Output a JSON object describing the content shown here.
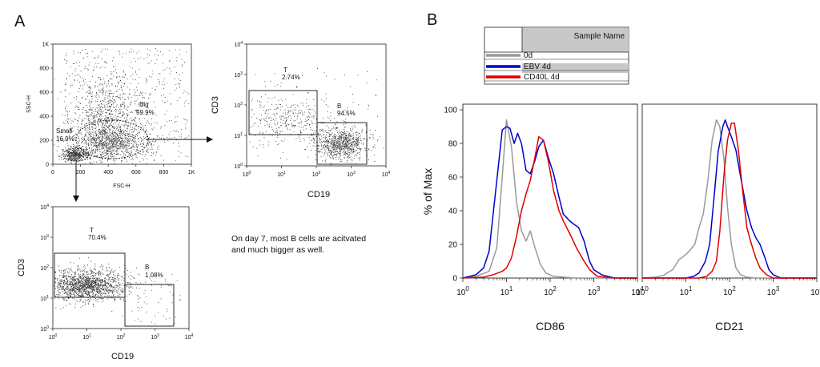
{
  "panels": {
    "a": "A",
    "b": "B"
  },
  "note": {
    "line1": "On day 7, most B cells are acitvated",
    "line2": "and  much bigger as well."
  },
  "chart_data": [
    {
      "id": "scatter-fsc-ssc",
      "type": "scatter",
      "xlabel": "FSC-H",
      "ylabel": "SSC-H",
      "x_ticks": [
        "0",
        "200",
        "400",
        "600",
        "800",
        "1K"
      ],
      "y_ticks": [
        "0",
        "200",
        "400",
        "600",
        "800",
        "1K"
      ],
      "xlim": [
        0,
        1000
      ],
      "ylim": [
        0,
        1000
      ],
      "gates": [
        {
          "name": "Small",
          "percent": "16.9%"
        },
        {
          "name": "Big",
          "percent": "59.9%"
        }
      ]
    },
    {
      "id": "scatter-cd19-cd3-top",
      "type": "scatter",
      "scale": "log",
      "xlabel": "CD19",
      "ylabel": "CD3",
      "xlim": [
        1,
        10000
      ],
      "ylim": [
        1,
        10000
      ],
      "gates": [
        {
          "name": "T",
          "percent": "2.74%"
        },
        {
          "name": "B",
          "percent": "94.5%"
        }
      ]
    },
    {
      "id": "scatter-cd19-cd3-bottom",
      "type": "scatter",
      "scale": "log",
      "xlabel": "CD19",
      "ylabel": "CD3",
      "xlim": [
        1,
        10000
      ],
      "ylim": [
        1,
        10000
      ],
      "gates": [
        {
          "name": "T",
          "percent": "70.4%"
        },
        {
          "name": "B",
          "percent": "1.08%"
        }
      ]
    },
    {
      "id": "hist-cd86",
      "type": "line",
      "scale": "log-x",
      "xlabel": "CD86",
      "ylabel": "% of Max",
      "xlim": [
        1,
        10000
      ],
      "ylim": [
        0,
        100
      ],
      "y_ticks": [
        "0",
        "20",
        "40",
        "60",
        "80",
        "100"
      ],
      "series": [
        {
          "name": "0d",
          "color": "#999999",
          "x": [
            1,
            2,
            4,
            6,
            8,
            10,
            13,
            17,
            22,
            28,
            35,
            45,
            60,
            80,
            120,
            200,
            400,
            1000,
            10000
          ],
          "y": [
            0,
            1,
            4,
            18,
            60,
            94,
            78,
            45,
            28,
            22,
            28,
            18,
            8,
            3,
            1,
            0.5,
            0,
            0,
            0
          ]
        },
        {
          "name": "EBV 4d",
          "color": "#0000cc",
          "x": [
            1,
            2,
            3,
            4,
            6,
            8,
            10,
            12,
            15,
            18,
            22,
            28,
            35,
            45,
            55,
            70,
            90,
            120,
            160,
            200,
            280,
            350,
            450,
            600,
            800,
            1000,
            1500,
            3000,
            10000
          ],
          "y": [
            0,
            2,
            6,
            16,
            58,
            88,
            90,
            89,
            80,
            86,
            80,
            64,
            62,
            70,
            78,
            82,
            72,
            62,
            48,
            38,
            34,
            32,
            30,
            22,
            10,
            5,
            2,
            0,
            0
          ]
        },
        {
          "name": "CD40L 4d",
          "color": "#e00000",
          "x": [
            1,
            3,
            5,
            8,
            10,
            13,
            17,
            22,
            28,
            35,
            45,
            55,
            70,
            90,
            120,
            160,
            200,
            300,
            400,
            600,
            800,
            1200,
            3000,
            10000
          ],
          "y": [
            0,
            0.5,
            2,
            4,
            6,
            12,
            25,
            40,
            50,
            58,
            72,
            84,
            82,
            70,
            52,
            40,
            34,
            25,
            18,
            10,
            5,
            1,
            0,
            0
          ]
        }
      ]
    },
    {
      "id": "hist-cd21",
      "type": "line",
      "scale": "log-x",
      "xlabel": "CD21",
      "ylabel": "% of Max",
      "xlim": [
        1,
        10000
      ],
      "ylim": [
        0,
        100
      ],
      "series": [
        {
          "name": "0d",
          "color": "#999999",
          "x": [
            1,
            2,
            3,
            5,
            7,
            9,
            12,
            16,
            20,
            25,
            32,
            40,
            50,
            60,
            75,
            90,
            110,
            140,
            180,
            250,
            400,
            10000
          ],
          "y": [
            0,
            0.5,
            1.5,
            5,
            11,
            13,
            16,
            20,
            30,
            38,
            58,
            82,
            94,
            90,
            70,
            42,
            20,
            6,
            2,
            0.5,
            0,
            0
          ]
        },
        {
          "name": "EBV 4d",
          "color": "#0000cc",
          "x": [
            1,
            10,
            15,
            20,
            28,
            35,
            45,
            55,
            70,
            80,
            90,
            110,
            140,
            180,
            250,
            320,
            400,
            500,
            650,
            800,
            1000,
            1500,
            10000
          ],
          "y": [
            0,
            0,
            1,
            3,
            10,
            20,
            50,
            75,
            90,
            94,
            90,
            84,
            76,
            60,
            40,
            30,
            24,
            20,
            12,
            5,
            2,
            0,
            0
          ]
        },
        {
          "name": "CD40L 4d",
          "color": "#e00000",
          "x": [
            1,
            20,
            30,
            40,
            50,
            60,
            75,
            90,
            110,
            130,
            160,
            200,
            250,
            320,
            400,
            500,
            700,
            1000,
            10000
          ],
          "y": [
            0,
            0,
            1,
            4,
            10,
            28,
            62,
            82,
            92,
            92,
            76,
            52,
            30,
            20,
            12,
            6,
            2,
            0,
            0
          ]
        }
      ]
    }
  ],
  "legend": {
    "header": "Sample Name",
    "items": [
      {
        "name": "0d",
        "color": "#999999"
      },
      {
        "name": "EBV 4d",
        "color": "#0000cc"
      },
      {
        "name": "CD40L 4d",
        "color": "#e00000"
      }
    ]
  }
}
